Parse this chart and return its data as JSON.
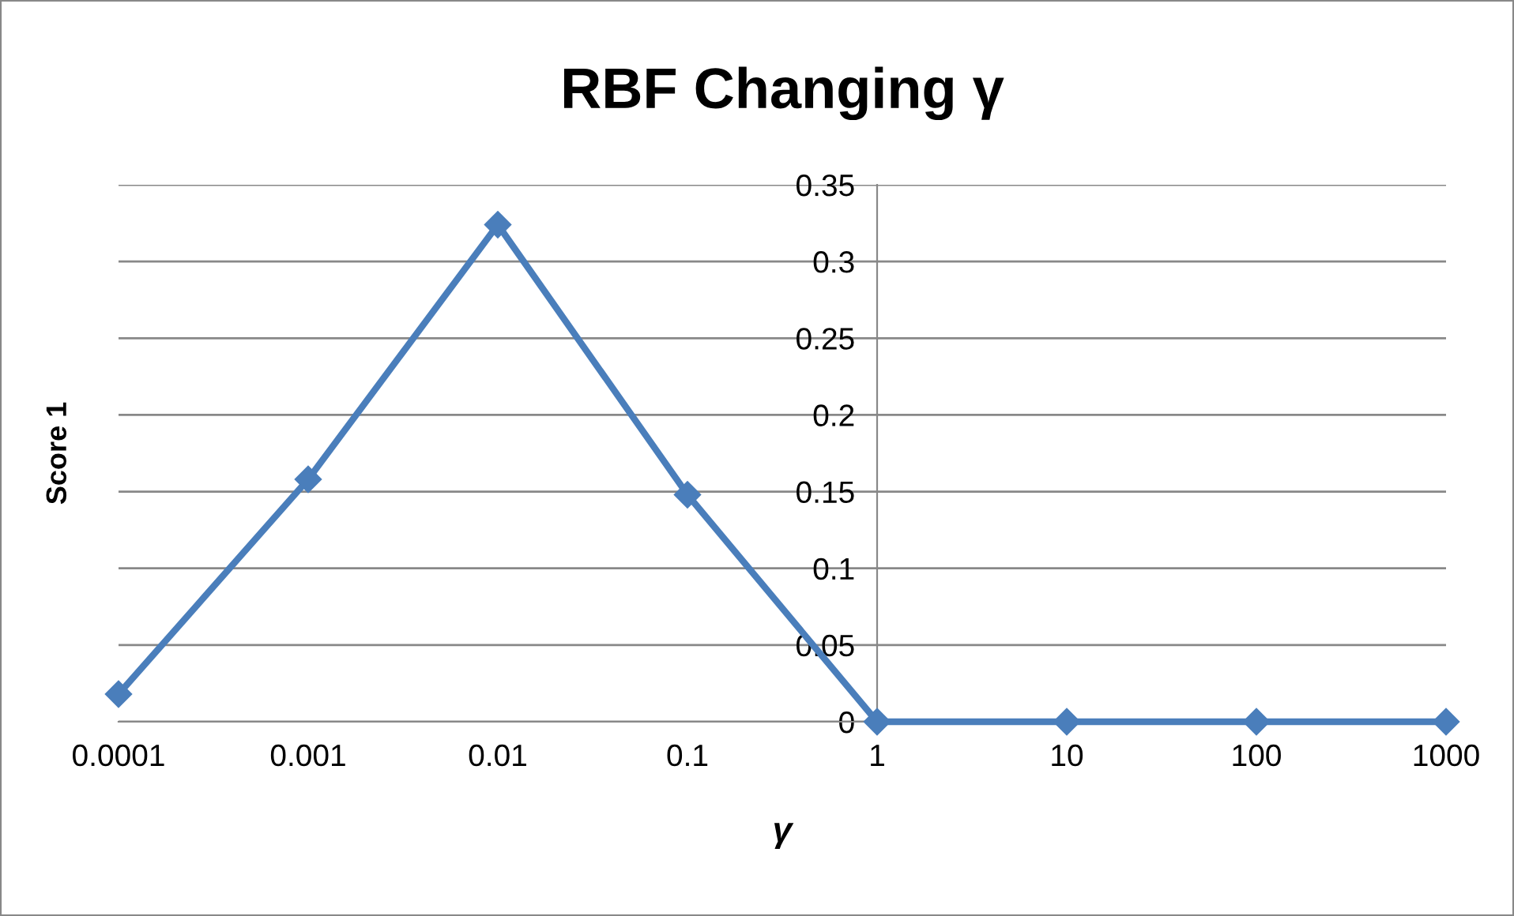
{
  "chart_data": {
    "type": "line",
    "title": "RBF Changing γ",
    "xlabel": "γ",
    "ylabel": "Score 1",
    "x": [
      0.0001,
      0.001,
      0.01,
      0.1,
      1,
      10,
      100,
      1000
    ],
    "series": [
      {
        "color": "#4a7ebb",
        "values": [
          0.018,
          0.158,
          0.324,
          0.148,
          0,
          0,
          0,
          0
        ]
      }
    ],
    "log": "x",
    "xlim": [
      0.0001,
      1000
    ],
    "xticks": [
      0.0001,
      0.001,
      0.01,
      0.1,
      1,
      10,
      100,
      1000
    ],
    "ylim": [
      0,
      0.35
    ],
    "yticks": [
      0,
      0.05,
      0.1,
      0.15,
      0.2,
      0.25,
      0.3,
      0.35
    ],
    "grid": "y",
    "marker": "diamond",
    "line_style": "solid"
  }
}
